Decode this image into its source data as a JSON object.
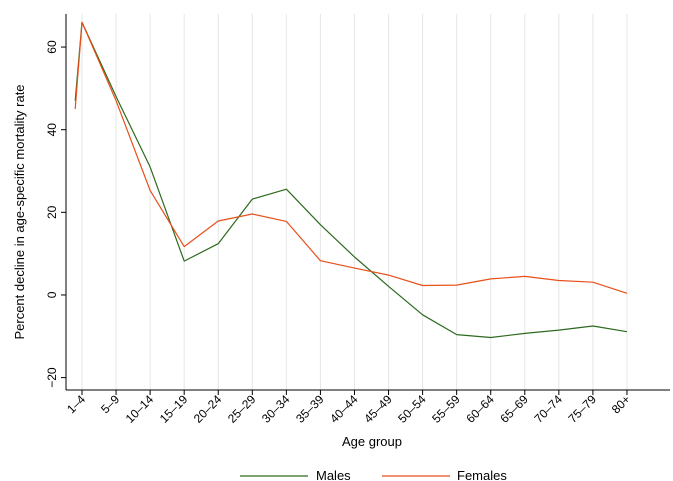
{
  "chart_data": {
    "type": "line",
    "categories": [
      "1–4",
      "5–9",
      "10–14",
      "15–19",
      "20–24",
      "25–29",
      "30–34",
      "35–39",
      "40–44",
      "45–49",
      "50–54",
      "55–59",
      "60–64",
      "65–69",
      "70–74",
      "75–79",
      "80+"
    ],
    "series": [
      {
        "name": "Males",
        "color": "#2d6a1f",
        "x": [
          -0.2,
          0,
          1,
          2,
          3,
          4,
          5,
          6,
          7,
          8,
          9,
          10,
          11,
          12,
          13,
          14,
          15,
          16
        ],
        "values": [
          47,
          66,
          48,
          31,
          8.2,
          12.4,
          23.2,
          25.6,
          17.0,
          9.2,
          2.1,
          -4.8,
          -9.6,
          -10.3,
          -9.3,
          -8.5,
          -7.5,
          -8.9
        ]
      },
      {
        "name": "Females",
        "color": "#e8501a",
        "x": [
          -0.2,
          0,
          1,
          2,
          3,
          4,
          5,
          6,
          7,
          8,
          9,
          10,
          11,
          12,
          13,
          14,
          15,
          16
        ],
        "values": [
          45,
          66,
          47,
          25.3,
          11.7,
          17.9,
          19.6,
          17.8,
          8.3,
          6.5,
          4.8,
          2.3,
          2.4,
          3.9,
          4.5,
          3.5,
          3.1,
          0.4
        ]
      }
    ],
    "xlabel": "Age group",
    "ylabel": "Percent decline in age-specific mortality rate",
    "ylim": [
      -23,
      68
    ],
    "yticks": [
      -20,
      0,
      20,
      40,
      60
    ],
    "ytick_labels": [
      "−20",
      "0",
      "20",
      "40",
      "60"
    ],
    "grid": "vertical",
    "legend_position": "bottom"
  }
}
